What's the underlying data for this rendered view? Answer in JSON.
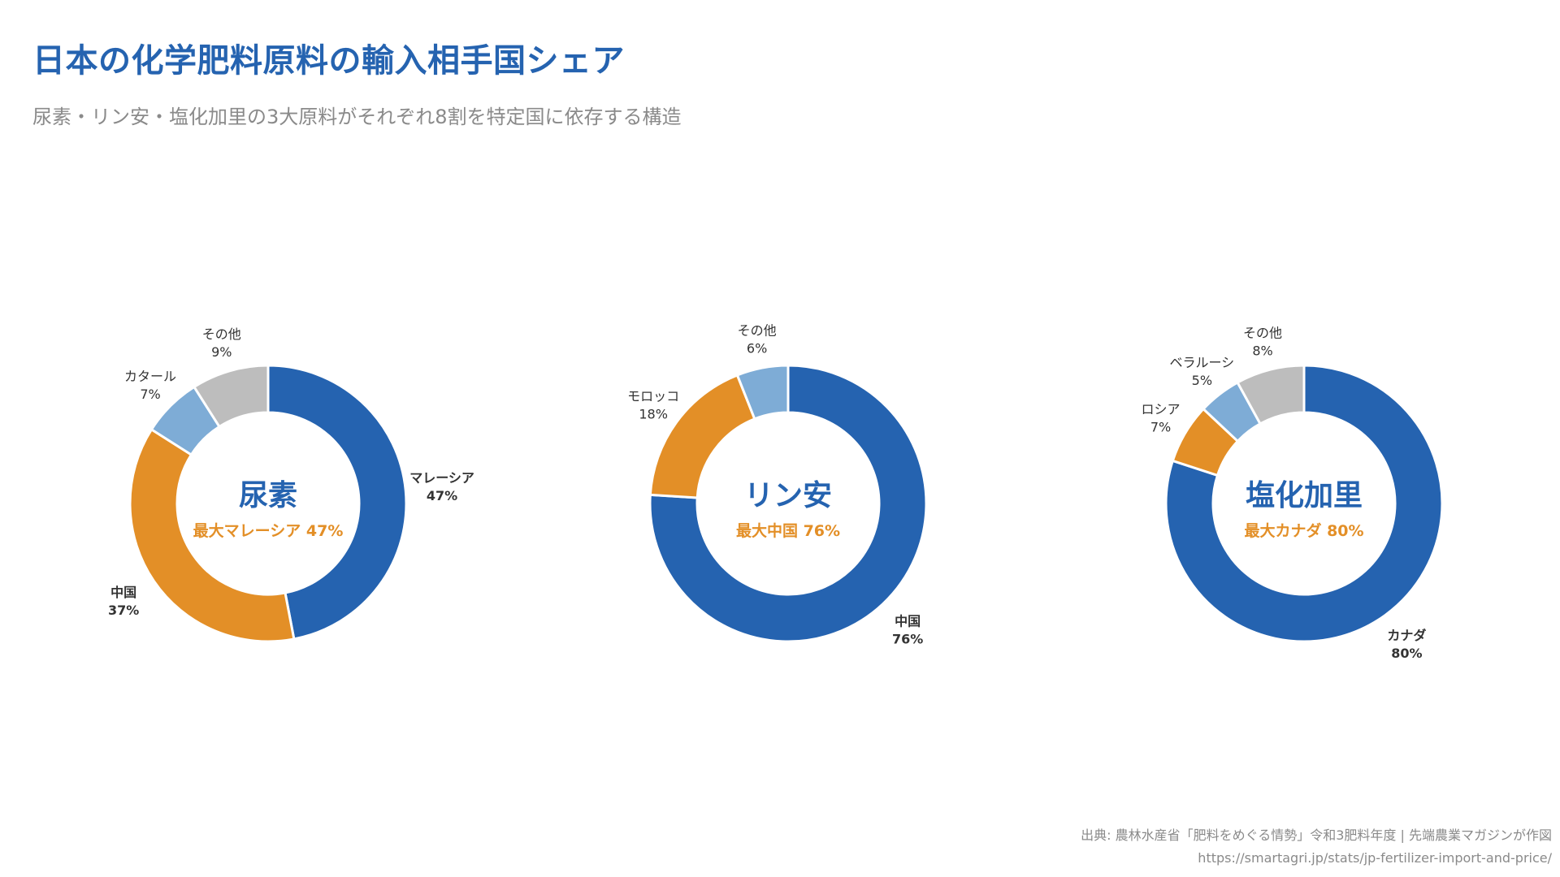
{
  "title": "日本の化学肥料原料の輸入相手国シェア",
  "subtitle": "尿素・リン安・塩化加里の3大原料がそれぞれ8割を特定国に依存する構造",
  "footer": {
    "source": "出典: 農林水産省「肥料をめぐる情勢」令和3肥料年度 | 先端農業マガジンが作図",
    "url": "https://smartagri.jp/stats/jp-fertilizer-import-and-price/"
  },
  "colors": {
    "title": "#2563b0",
    "subtitle": "#8a8a8a",
    "primary": "#2563b0",
    "secondary": "#e38f27",
    "tertiary": "#7eacd6",
    "other": "#bdbdbd",
    "label": "#333333"
  },
  "chart_data": [
    {
      "type": "pie",
      "center_title": "尿素",
      "center_subtitle": "最大マレーシア 47%",
      "categories": [
        "マレーシア",
        "中国",
        "カタール",
        "その他"
      ],
      "values": [
        47,
        37,
        7,
        9
      ],
      "value_labels": [
        "47%",
        "37%",
        "7%",
        "9%"
      ],
      "bold": [
        true,
        true,
        false,
        false
      ],
      "colors": [
        "#2563b0",
        "#e38f27",
        "#7eacd6",
        "#bdbdbd"
      ]
    },
    {
      "type": "pie",
      "center_title": "リン安",
      "center_subtitle": "最大中国 76%",
      "categories": [
        "中国",
        "モロッコ",
        "その他"
      ],
      "values": [
        76,
        18,
        6
      ],
      "value_labels": [
        "76%",
        "18%",
        "6%"
      ],
      "bold": [
        true,
        false,
        false
      ],
      "colors": [
        "#2563b0",
        "#e38f27",
        "#7eacd6"
      ]
    },
    {
      "type": "pie",
      "center_title": "塩化加里",
      "center_subtitle": "最大カナダ 80%",
      "categories": [
        "カナダ",
        "ロシア",
        "ベラルーシ",
        "その他"
      ],
      "values": [
        80,
        7,
        5,
        8
      ],
      "value_labels": [
        "80%",
        "7%",
        "5%",
        "8%"
      ],
      "bold": [
        true,
        false,
        false,
        false
      ],
      "colors": [
        "#2563b0",
        "#e38f27",
        "#7eacd6",
        "#bdbdbd"
      ]
    }
  ]
}
